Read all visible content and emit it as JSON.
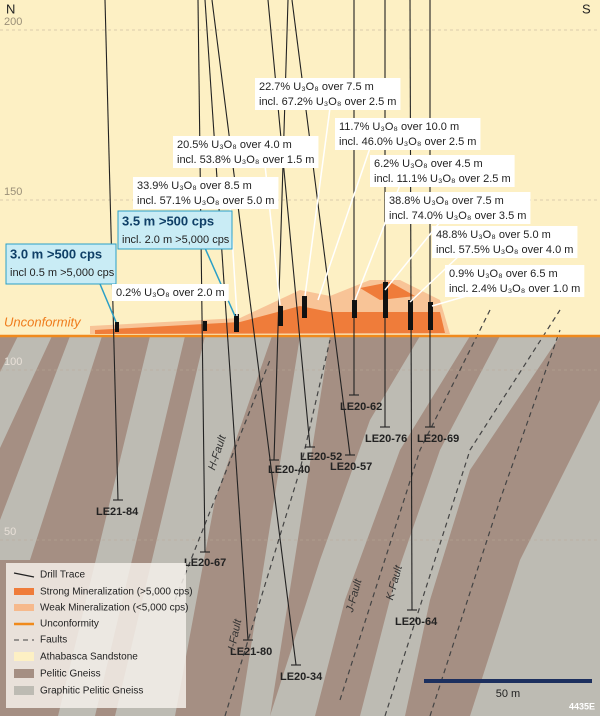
{
  "header": {
    "north": "N",
    "south": "S"
  },
  "elevations": [
    200,
    150,
    100,
    50
  ],
  "unconformity_label": "Unconformity",
  "drill_holes": [
    "LE21-84",
    "LE20-67",
    "LE21-80",
    "LE20-34",
    "LE20-40",
    "LE20-52",
    "LE20-57",
    "LE20-62",
    "LE20-76",
    "LE20-69",
    "LE20-64"
  ],
  "cps_callouts": [
    {
      "lines": [
        "3.0 m >500 cps",
        "incl 0.5 m >5,000 cps"
      ]
    },
    {
      "lines": [
        "3.5 m >500 cps",
        "incl. 2.0 m >5,000 cps"
      ]
    }
  ],
  "assay_callouts": [
    {
      "lines": [
        "0.2% U₃O₈ over 2.0 m"
      ]
    },
    {
      "lines": [
        "33.9% U₃O₈ over 8.5 m",
        "incl. 57.1% U₃O₈ over 5.0 m"
      ]
    },
    {
      "lines": [
        "20.5% U₃O₈ over 4.0 m",
        "incl. 53.8% U₃O₈ over 1.5 m"
      ]
    },
    {
      "lines": [
        "22.7% U₃O₈ over 7.5 m",
        "incl. 67.2% U₃O₈ over 2.5 m"
      ]
    },
    {
      "lines": [
        "11.7% U₃O₈ over 10.0 m",
        "incl. 46.0% U₃O₈ over 2.5 m"
      ]
    },
    {
      "lines": [
        "6.2% U₃O₈ over 4.5 m",
        "incl. 11.1% U₃O₈ over 2.5 m"
      ]
    },
    {
      "lines": [
        "38.8% U₃O₈ over 7.5 m",
        "incl. 74.0% U₃O₈ over 3.5 m"
      ]
    },
    {
      "lines": [
        "48.8% U₃O₈ over 5.0 m",
        "incl. 57.5% U₃O₈ over 4.0 m"
      ]
    },
    {
      "lines": [
        "0.9% U₃O₈ over 6.5 m",
        "incl. 2.4% U₃O₈ over 1.0 m"
      ]
    }
  ],
  "faults": [
    "H-Fault",
    "I-Fault",
    "J-Fault",
    "K-Fault"
  ],
  "legend": [
    "Drill Trace",
    "Strong Mineralization (>5,000 cps)",
    "Weak Mineralization (<5,000 cps)",
    "Unconformity",
    "Faults",
    "Athabasca Sandstone",
    "Pelitic Gneiss",
    "Graphitic Pelitic Gneiss"
  ],
  "scale_bar": "50 m",
  "section_id": "4435E"
}
